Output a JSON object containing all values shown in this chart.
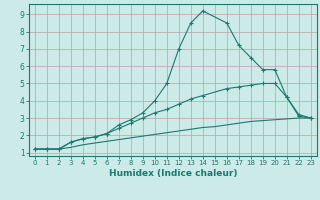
{
  "line1_x": [
    0,
    1,
    2,
    3,
    4,
    5,
    6,
    7,
    8,
    9,
    10,
    11,
    12,
    13,
    14,
    16,
    17,
    18,
    19,
    20,
    21,
    22,
    23
  ],
  "line1_y": [
    1.2,
    1.2,
    1.2,
    1.6,
    1.8,
    1.9,
    2.1,
    2.6,
    2.9,
    3.3,
    4.0,
    5.0,
    7.0,
    8.5,
    9.2,
    8.5,
    7.2,
    6.5,
    5.8,
    5.8,
    4.2,
    3.1,
    3.0
  ],
  "line2_x": [
    0,
    1,
    2,
    3,
    4,
    5,
    6,
    7,
    8,
    9,
    10,
    11,
    12,
    13,
    14,
    16,
    17,
    18,
    19,
    20,
    21,
    22,
    23
  ],
  "line2_y": [
    1.2,
    1.2,
    1.2,
    1.6,
    1.8,
    1.9,
    2.1,
    2.4,
    2.7,
    3.0,
    3.3,
    3.5,
    3.8,
    4.1,
    4.3,
    4.7,
    4.8,
    4.9,
    5.0,
    5.0,
    4.2,
    3.2,
    3.0
  ],
  "line3_x": [
    0,
    1,
    2,
    3,
    4,
    5,
    6,
    7,
    8,
    9,
    10,
    11,
    12,
    13,
    14,
    15,
    16,
    17,
    18,
    19,
    20,
    21,
    22,
    23
  ],
  "line3_y": [
    1.2,
    1.2,
    1.2,
    1.3,
    1.45,
    1.55,
    1.65,
    1.75,
    1.85,
    1.95,
    2.05,
    2.15,
    2.25,
    2.35,
    2.45,
    2.5,
    2.6,
    2.7,
    2.8,
    2.85,
    2.9,
    2.95,
    3.0,
    3.0
  ],
  "line_color": "#1a7a6e",
  "bg_color": "#cceae8",
  "grid_color": "#c0a0a8",
  "xlabel": "Humidex (Indice chaleur)",
  "xlim": [
    -0.5,
    23.5
  ],
  "ylim": [
    0.8,
    9.6
  ],
  "xticks": [
    0,
    1,
    2,
    3,
    4,
    5,
    6,
    7,
    8,
    9,
    10,
    11,
    12,
    13,
    14,
    15,
    16,
    17,
    18,
    19,
    20,
    21,
    22,
    23
  ],
  "yticks": [
    1,
    2,
    3,
    4,
    5,
    6,
    7,
    8,
    9
  ]
}
